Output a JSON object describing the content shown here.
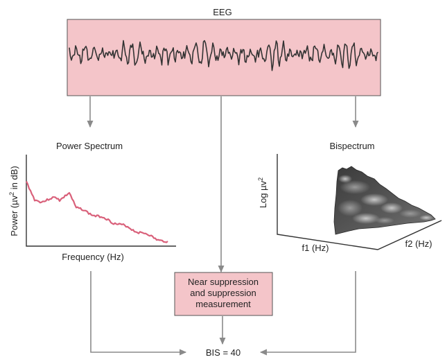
{
  "eeg": {
    "title": "EEG",
    "panel_color": "#f4c5c9",
    "trace_color": "#333333"
  },
  "power_spectrum": {
    "title": "Power Spectrum",
    "ylabel_prefix": "Power (µv",
    "ylabel_sup": "2",
    "ylabel_suffix": " in dB)",
    "xlabel": "Frequency (Hz)",
    "line_color": "#d9607a"
  },
  "bispectrum": {
    "title": "Bispectrum",
    "zlabel_prefix": "Log µv",
    "zlabel_sup": "2",
    "xlabel": "f1 (Hz)",
    "ylabel": "f2 (Hz)"
  },
  "suppression_box": {
    "line1": "Near suppression",
    "line2": "and suppression",
    "line3": "measurement",
    "fill_color": "#f4c5c9"
  },
  "result": {
    "label": "BIS = 40"
  }
}
